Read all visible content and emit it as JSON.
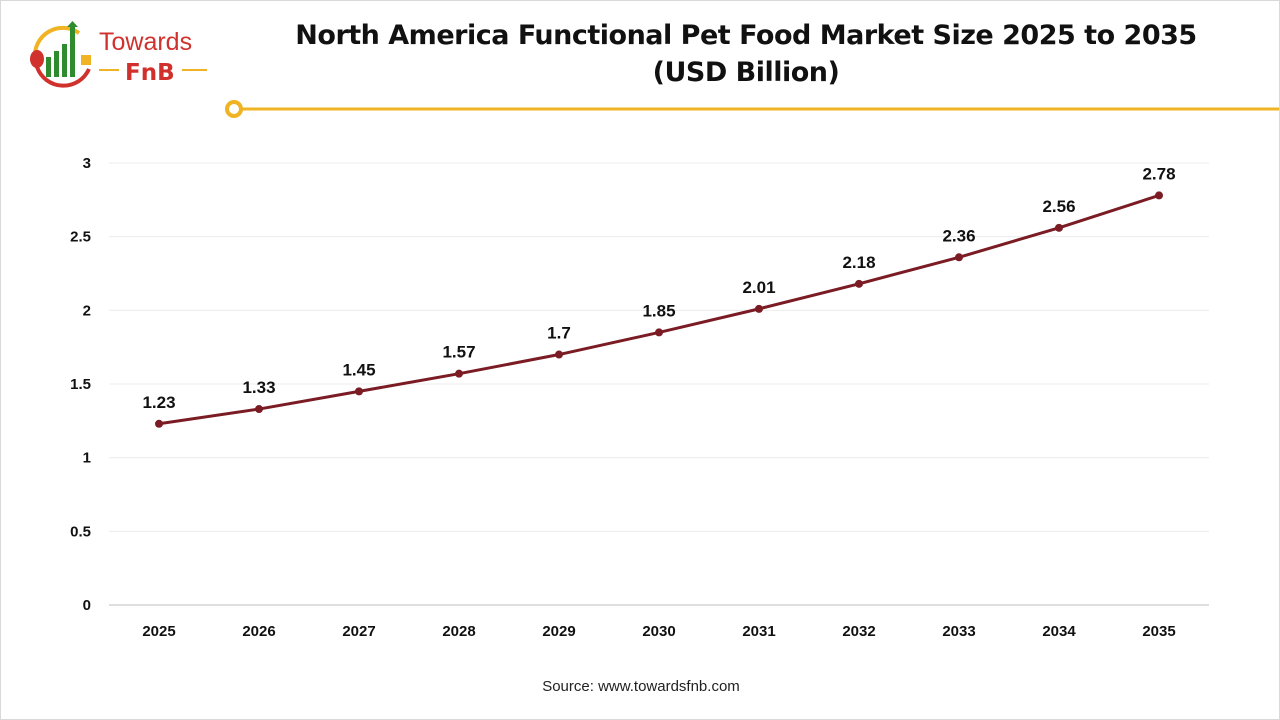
{
  "brand": {
    "logo_text_1": "Towards",
    "logo_text_2": "FnB",
    "colors": {
      "red": "#d0312d",
      "green": "#2e8b2e",
      "gold": "#f0b323"
    }
  },
  "chart_data": {
    "type": "line",
    "title": "North America Functional Pet Food Market Size 2025 to 2035 (USD Billion)",
    "title_line1": "North America Functional Pet Food Market Size 2025 to 2035",
    "title_line2": "(USD Billion)",
    "categories": [
      "2025",
      "2026",
      "2027",
      "2028",
      "2029",
      "2030",
      "2031",
      "2032",
      "2033",
      "2034",
      "2035"
    ],
    "values": [
      1.23,
      1.33,
      1.45,
      1.57,
      1.7,
      1.85,
      2.01,
      2.18,
      2.36,
      2.56,
      2.78
    ],
    "data_labels": [
      "1.23",
      "1.33",
      "1.45",
      "1.57",
      "1.7",
      "1.85",
      "2.01",
      "2.18",
      "2.36",
      "2.56",
      "2.78"
    ],
    "ylim": [
      0,
      3
    ],
    "yticks": [
      "0",
      "0.5",
      "1",
      "1.5",
      "2",
      "2.5",
      "3"
    ],
    "grid": true,
    "line_color": "#7b1c24",
    "xlabel": "",
    "ylabel": ""
  },
  "source": "Source: www.towardsfnb.com"
}
